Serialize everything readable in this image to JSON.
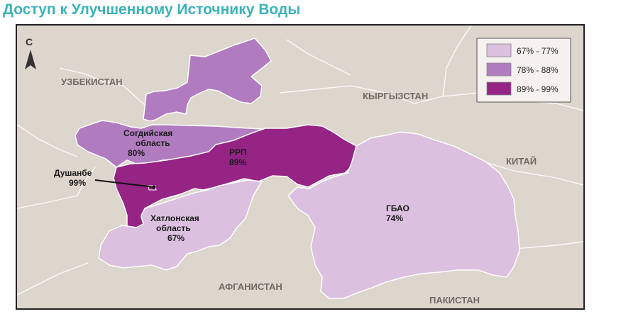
{
  "title": "Доступ к Улучшенному Источнику Воды",
  "north_label": "С",
  "countries": {
    "uzbekistan": "УЗБЕКИСТАН",
    "kyrgyzstan": "КЫРГЫЗСТАН",
    "china": "КИТАЙ",
    "afghanistan": "АФГАНИСТАН",
    "pakistan": "ПАКИСТАН"
  },
  "regions": {
    "sughd": {
      "name_line1": "Согдийская",
      "name_line2": "область",
      "value": "80%",
      "fill": "#b07bbf"
    },
    "rrp": {
      "name": "РРП",
      "value": "89%",
      "fill": "#952485"
    },
    "dushanbe": {
      "name": "Душанбе",
      "value": "99%",
      "fill": "#952485"
    },
    "khatlon": {
      "name_line1": "Хатлонская",
      "name_line2": "область",
      "value": "67%",
      "fill": "#dcc0e0"
    },
    "gbao": {
      "name": "ГБАО",
      "value": "74%",
      "fill": "#dcc0e0"
    }
  },
  "legend": [
    {
      "label": "67% - 77%",
      "color": "#dcc0e0"
    },
    {
      "label": "78% - 88%",
      "color": "#b07bbf"
    },
    {
      "label": "89% - 99%",
      "color": "#952485"
    }
  ]
}
